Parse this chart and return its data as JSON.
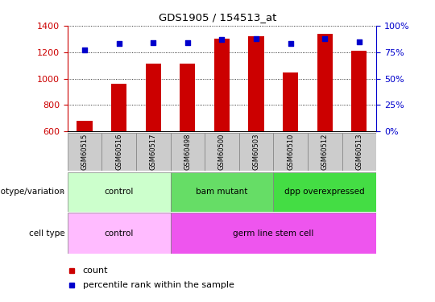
{
  "title": "GDS1905 / 154513_at",
  "samples": [
    "GSM60515",
    "GSM60516",
    "GSM60517",
    "GSM60498",
    "GSM60500",
    "GSM60503",
    "GSM60510",
    "GSM60512",
    "GSM60513"
  ],
  "counts": [
    680,
    960,
    1110,
    1115,
    1300,
    1320,
    1045,
    1340,
    1210
  ],
  "percentile_ranks": [
    77,
    83,
    84,
    84,
    87,
    88,
    83,
    88,
    85
  ],
  "ylim_left": [
    600,
    1400
  ],
  "ylim_right": [
    0,
    100
  ],
  "yticks_left": [
    600,
    800,
    1000,
    1200,
    1400
  ],
  "yticks_right": [
    0,
    25,
    50,
    75,
    100
  ],
  "bar_color": "#cc0000",
  "dot_color": "#0000cc",
  "bar_width": 0.45,
  "genotype_groups": [
    {
      "label": "control",
      "start": 0,
      "end": 2,
      "color": "#ccffcc"
    },
    {
      "label": "bam mutant",
      "start": 3,
      "end": 5,
      "color": "#66dd66"
    },
    {
      "label": "dpp overexpressed",
      "start": 6,
      "end": 8,
      "color": "#44dd44"
    }
  ],
  "celltype_groups": [
    {
      "label": "control",
      "start": 0,
      "end": 2,
      "color": "#ffbbff"
    },
    {
      "label": "germ line stem cell",
      "start": 3,
      "end": 8,
      "color": "#ee55ee"
    }
  ],
  "genotype_label": "genotype/variation",
  "celltype_label": "cell type",
  "legend_count_label": "count",
  "legend_pct_label": "percentile rank within the sample",
  "left_tick_color": "#cc0000",
  "right_tick_color": "#0000cc",
  "sample_box_color": "#cccccc",
  "arrow_color": "#888888"
}
